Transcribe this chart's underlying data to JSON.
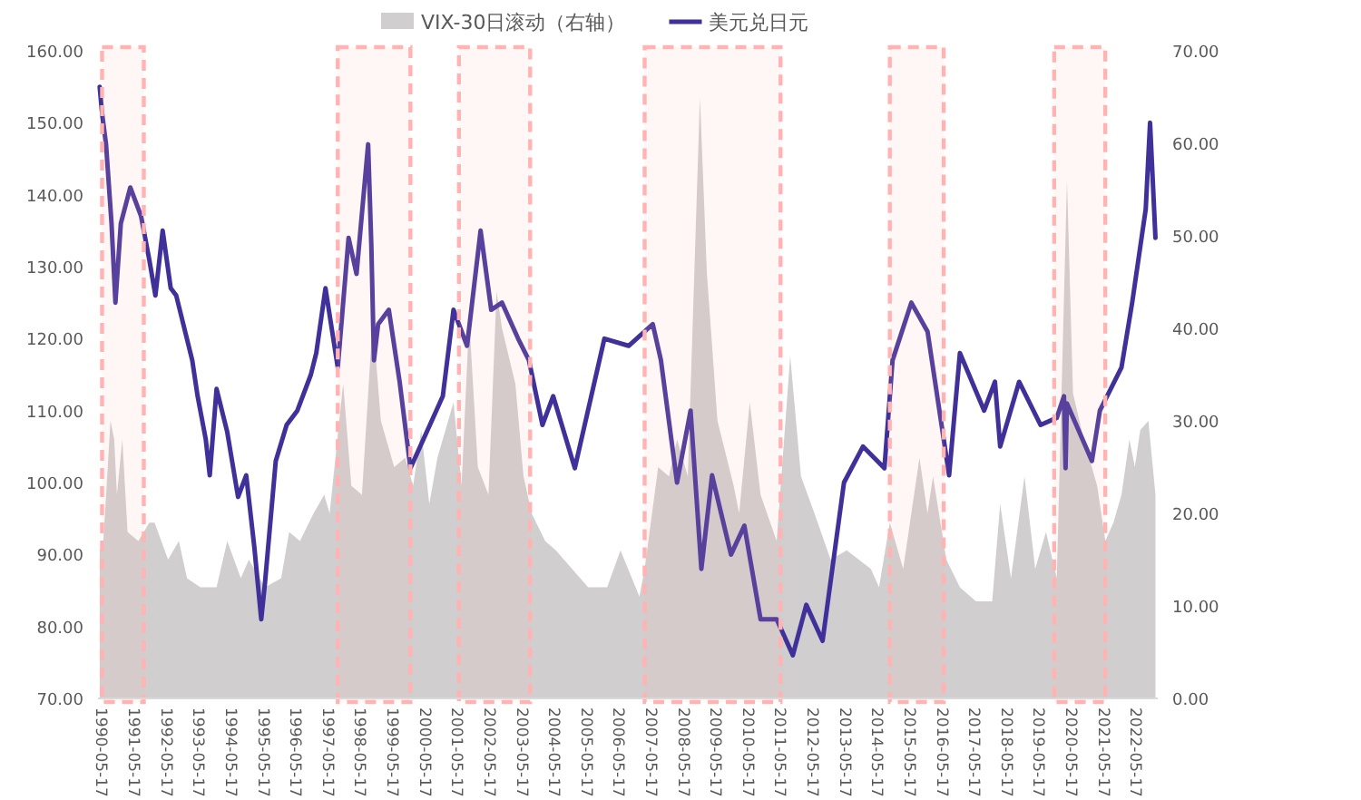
{
  "chart_data": {
    "type": "line",
    "legend": "top",
    "xlim": [
      "1990-04-01",
      "2023-01-15"
    ],
    "xticks": [
      {
        "value": "1990-05-17",
        "label": "1990-05-17"
      },
      {
        "value": "1991-05-17",
        "label": "1991-05-17"
      },
      {
        "value": "1992-05-17",
        "label": "1992-05-17"
      },
      {
        "value": "1993-05-17",
        "label": "1993-05-17"
      },
      {
        "value": "1994-05-17",
        "label": "1994-05-17"
      },
      {
        "value": "1995-05-17",
        "label": "1995-05-17"
      },
      {
        "value": "1996-05-17",
        "label": "1996-05-17"
      },
      {
        "value": "1997-05-17",
        "label": "1997-05-17"
      },
      {
        "value": "1998-05-17",
        "label": "1998-05-17"
      },
      {
        "value": "1999-05-17",
        "label": "1999-05-17"
      },
      {
        "value": "2000-05-17",
        "label": "2000-05-17"
      },
      {
        "value": "2001-05-17",
        "label": "2001-05-17"
      },
      {
        "value": "2002-05-17",
        "label": "2002-05-17"
      },
      {
        "value": "2003-05-17",
        "label": "2003-05-17"
      },
      {
        "value": "2004-05-17",
        "label": "2004-05-17"
      },
      {
        "value": "2005-05-17",
        "label": "2005-05-17"
      },
      {
        "value": "2006-05-17",
        "label": "2006-05-17"
      },
      {
        "value": "2007-05-17",
        "label": "2007-05-17"
      },
      {
        "value": "2008-05-17",
        "label": "2008-05-17"
      },
      {
        "value": "2009-05-17",
        "label": "2009-05-17"
      },
      {
        "value": "2010-05-17",
        "label": "2010-05-17"
      },
      {
        "value": "2011-05-17",
        "label": "2011-05-17"
      },
      {
        "value": "2012-05-17",
        "label": "2012-05-17"
      },
      {
        "value": "2013-05-17",
        "label": "2013-05-17"
      },
      {
        "value": "2014-05-17",
        "label": "2014-05-17"
      },
      {
        "value": "2015-05-17",
        "label": "2015-05-17"
      },
      {
        "value": "2016-05-17",
        "label": "2016-05-17"
      },
      {
        "value": "2017-05-17",
        "label": "2017-05-17"
      },
      {
        "value": "2018-05-17",
        "label": "2018-05-17"
      },
      {
        "value": "2019-05-17",
        "label": "2019-05-17"
      },
      {
        "value": "2020-05-17",
        "label": "2020-05-17"
      },
      {
        "value": "2021-05-17",
        "label": "2021-05-17"
      },
      {
        "value": "2022-05-17",
        "label": "2022-05-17"
      }
    ],
    "ylim": [
      70,
      160
    ],
    "yticks": [
      {
        "value": 70,
        "label": "70.00"
      },
      {
        "value": 80,
        "label": "80.00"
      },
      {
        "value": 90,
        "label": "90.00"
      },
      {
        "value": 100,
        "label": "100.00"
      },
      {
        "value": 110,
        "label": "110.00"
      },
      {
        "value": 120,
        "label": "120.00"
      },
      {
        "value": 130,
        "label": "130.00"
      },
      {
        "value": 140,
        "label": "140.00"
      },
      {
        "value": 150,
        "label": "150.00"
      },
      {
        "value": 160,
        "label": "160.00"
      }
    ],
    "y2lim": [
      0,
      70
    ],
    "y2ticks": [
      {
        "value": 0,
        "label": "0.00"
      },
      {
        "value": 10,
        "label": "10.00"
      },
      {
        "value": 20,
        "label": "20.00"
      },
      {
        "value": 30,
        "label": "30.00"
      },
      {
        "value": 40,
        "label": "40.00"
      },
      {
        "value": 50,
        "label": "50.00"
      },
      {
        "value": 60,
        "label": "60.00"
      },
      {
        "value": 70,
        "label": "70.00"
      }
    ],
    "bands": [
      {
        "axis": "x",
        "from": "1990-05-17",
        "to": "1991-09-01",
        "color": "#ffb3b3"
      },
      {
        "axis": "x",
        "from": "1997-09-01",
        "to": "1999-12-01",
        "color": "#ffb3b3"
      },
      {
        "axis": "x",
        "from": "2001-06-01",
        "to": "2003-08-15",
        "color": "#ffb3b3"
      },
      {
        "axis": "x",
        "from": "2007-03-01",
        "to": "2011-05-15",
        "color": "#ffb3b3"
      },
      {
        "axis": "x",
        "from": "2014-10-01",
        "to": "2016-06-01",
        "color": "#ffb3b3"
      },
      {
        "axis": "x",
        "from": "2019-11-01",
        "to": "2021-06-01",
        "color": "#ffb3b3"
      }
    ],
    "series": [
      {
        "name": "VIX-30日滚动（右轴）",
        "type": "area",
        "axis": "y2",
        "color": "#d0cece",
        "x": [
          "1990-04-20",
          "1990-06-01",
          "1990-08-20",
          "1990-10-01",
          "1990-11-01",
          "1991-01-01",
          "1991-03-01",
          "1991-07-01",
          "1991-11-01",
          "1992-01-01",
          "1992-06-01",
          "1992-10-01",
          "1993-01-01",
          "1993-06-01",
          "1993-12-01",
          "1994-04-01",
          "1994-09-01",
          "1994-12-01",
          "1995-06-01",
          "1995-12-01",
          "1996-03-01",
          "1996-07-01",
          "1996-12-01",
          "1997-04-01",
          "1997-06-01",
          "1997-11-01",
          "1998-02-01",
          "1998-06-01",
          "1998-10-01",
          "1999-01-01",
          "1999-06-01",
          "1999-10-01",
          "2000-01-01",
          "2000-04-01",
          "2000-07-01",
          "2000-10-01",
          "2001-04-01",
          "2001-07-01",
          "2001-09-25",
          "2002-01-01",
          "2002-05-01",
          "2002-08-01",
          "2002-10-01",
          "2003-03-01",
          "2003-06-01",
          "2003-09-01",
          "2004-02-01",
          "2004-06-01",
          "2004-12-01",
          "2005-06-01",
          "2006-01-01",
          "2006-06-01",
          "2007-01-01",
          "2007-03-01",
          "2007-08-01",
          "2007-12-01",
          "2008-03-01",
          "2008-07-01",
          "2008-11-15",
          "2009-02-01",
          "2009-06-01",
          "2009-12-01",
          "2010-02-01",
          "2010-06-01",
          "2010-10-01",
          "2011-04-01",
          "2011-09-01",
          "2012-01-01",
          "2012-06-01",
          "2012-12-01",
          "2013-06-01",
          "2014-03-01",
          "2014-06-01",
          "2014-10-01",
          "2015-03-01",
          "2015-09-01",
          "2015-12-01",
          "2016-02-01",
          "2016-07-01",
          "2016-12-01",
          "2017-06-01",
          "2017-12-01",
          "2018-03-01",
          "2018-07-01",
          "2018-12-01",
          "2019-04-01",
          "2019-08-01",
          "2019-12-01",
          "2020-03-25",
          "2020-06-01",
          "2020-10-01",
          "2021-03-01",
          "2021-06-01",
          "2021-09-01",
          "2021-12-01",
          "2022-03-01",
          "2022-05-01",
          "2022-07-01",
          "2022-10-01",
          "2022-12-20"
        ],
        "values": [
          16,
          17,
          30,
          28,
          22,
          28,
          18,
          17,
          19,
          19,
          15,
          17,
          13,
          12,
          12,
          17,
          13,
          15,
          12,
          13,
          18,
          17,
          20,
          22,
          20,
          34,
          23,
          22,
          41,
          30,
          25,
          26,
          23,
          29,
          21,
          26,
          32,
          23,
          41,
          25,
          22,
          44,
          40,
          34,
          24,
          20,
          17,
          16,
          14,
          12,
          12,
          16,
          11,
          14,
          25,
          24,
          28,
          24,
          65,
          46,
          30,
          23,
          20,
          32,
          22,
          17,
          37,
          24,
          20,
          15,
          16,
          14,
          12,
          19,
          14,
          26,
          20,
          24,
          15,
          12,
          10.5,
          10.5,
          21,
          13,
          24,
          14,
          18,
          13,
          56,
          33,
          28,
          23,
          17,
          19,
          22,
          28,
          25,
          29,
          30,
          22
        ]
      },
      {
        "name": "美元兑日元",
        "type": "line",
        "color": "#40319a",
        "x": [
          "1990-04-20",
          "1990-05-20",
          "1990-07-01",
          "1990-09-01",
          "1990-10-15",
          "1990-12-15",
          "1991-04-01",
          "1991-08-01",
          "1991-11-01",
          "1992-01-10",
          "1992-04-01",
          "1992-07-01",
          "1992-09-01",
          "1993-03-01",
          "1993-05-01",
          "1993-08-01",
          "1993-09-15",
          "1993-12-01",
          "1994-04-01",
          "1994-08-01",
          "1994-11-01",
          "1995-02-01",
          "1995-04-20",
          "1995-06-01",
          "1995-10-01",
          "1996-02-01",
          "1996-06-01",
          "1996-11-01",
          "1997-01-01",
          "1997-04-15",
          "1997-09-01",
          "1998-01-01",
          "1998-04-01",
          "1998-08-10",
          "1998-09-15",
          "1998-10-15",
          "1998-12-01",
          "1999-04-01",
          "1999-08-01",
          "1999-12-01",
          "2000-06-01",
          "2000-12-01",
          "2001-04-01",
          "2001-09-01",
          "2002-02-01",
          "2002-06-01",
          "2002-10-01",
          "2003-04-01",
          "2003-08-01",
          "2004-01-01",
          "2004-05-01",
          "2005-01-01",
          "2005-12-01",
          "2006-09-01",
          "2007-06-01",
          "2007-09-01",
          "2008-03-01",
          "2008-08-01",
          "2008-12-01",
          "2009-04-01",
          "2009-11-01",
          "2010-04-01",
          "2010-10-01",
          "2011-04-01",
          "2011-10-01",
          "2012-03-01",
          "2012-09-01",
          "2013-05-01",
          "2013-12-01",
          "2014-08-01",
          "2014-11-01",
          "2015-06-01",
          "2015-12-01",
          "2016-08-01",
          "2016-12-01",
          "2017-09-01",
          "2018-01-01",
          "2018-03-01",
          "2018-10-01",
          "2019-06-01",
          "2019-12-01",
          "2020-02-20",
          "2020-03-09",
          "2020-03-24",
          "2021-01-01",
          "2021-04-01",
          "2021-12-01",
          "2022-04-01",
          "2022-09-01",
          "2022-10-20",
          "2022-12-20"
        ],
        "values": [
          155,
          151,
          147,
          136,
          125,
          136,
          141,
          137,
          131,
          126,
          135,
          127,
          126,
          117,
          112,
          106,
          101,
          113,
          107,
          98,
          101,
          91,
          81,
          86,
          103,
          108,
          110,
          115,
          118,
          127,
          116,
          134,
          129,
          147,
          133,
          117,
          122,
          124,
          114,
          102,
          107,
          112,
          124,
          119,
          135,
          124,
          125,
          120,
          117,
          108,
          112,
          102,
          120,
          119,
          122,
          117,
          100,
          110,
          88,
          101,
          90,
          94,
          81,
          81,
          76,
          83,
          78,
          100,
          105,
          102,
          117,
          125,
          121,
          101,
          118,
          110,
          114,
          105,
          114,
          108,
          109,
          112,
          102,
          111,
          103,
          110,
          116,
          125,
          138,
          150,
          134
        ]
      }
    ]
  }
}
